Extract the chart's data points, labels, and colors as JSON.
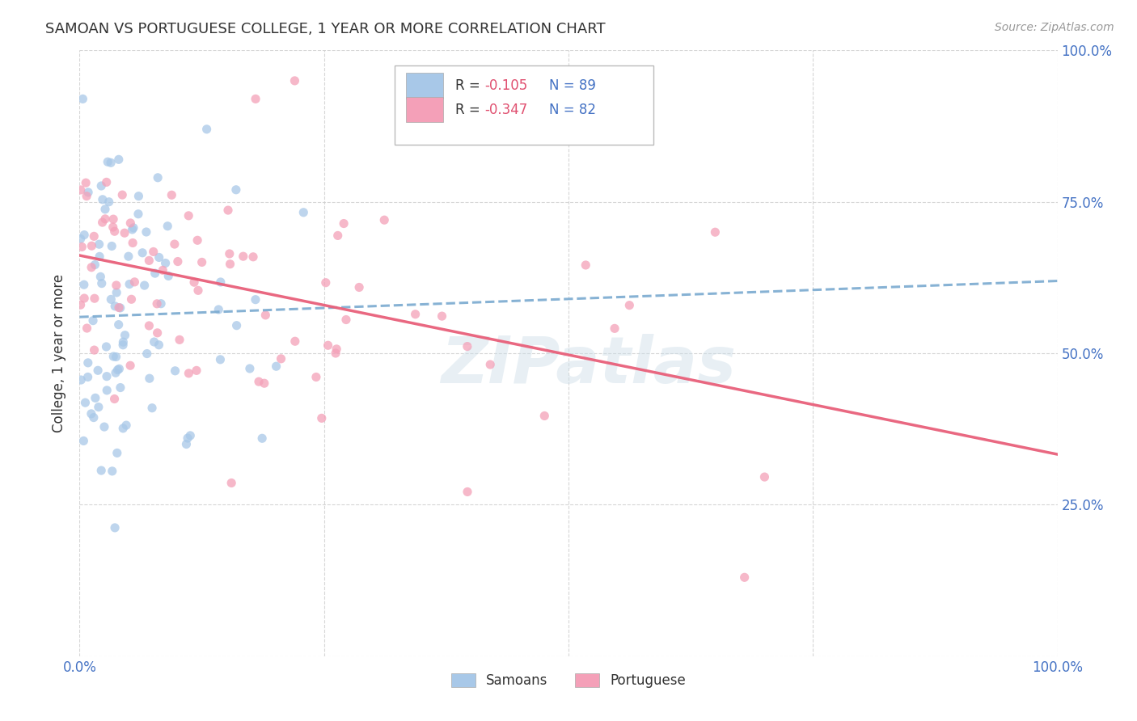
{
  "title": "SAMOAN VS PORTUGUESE COLLEGE, 1 YEAR OR MORE CORRELATION CHART",
  "source": "Source: ZipAtlas.com",
  "ylabel": "College, 1 year or more",
  "legend_labels": [
    "Samoans",
    "Portuguese"
  ],
  "R_samoan": -0.105,
  "N_samoan": 89,
  "R_portuguese": -0.347,
  "N_portuguese": 82,
  "samoan_color": "#a8c8e8",
  "portuguese_color": "#f4a0b8",
  "samoan_line_color": "#7aaad0",
  "portuguese_line_color": "#e8607a",
  "watermark": "ZIPatlas",
  "title_color": "#333333",
  "axis_label_color": "#4472c4",
  "background_color": "#ffffff",
  "R_value_color": "#e05070",
  "N_value_color": "#4472c4",
  "grid_color": "#cccccc",
  "samoan_seed": 7,
  "portuguese_seed": 99,
  "marker_size": 65,
  "marker_alpha": 0.75
}
